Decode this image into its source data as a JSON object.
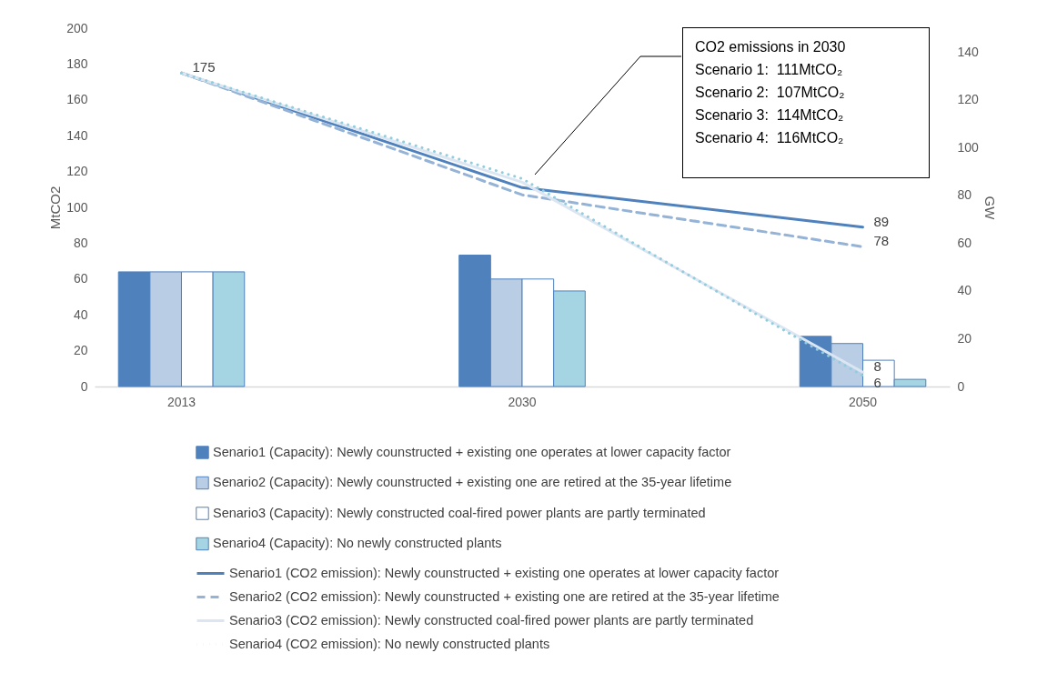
{
  "chart_data": {
    "type": "bar",
    "categories": [
      "2013",
      "2030",
      "2050"
    ],
    "ylabel": "MtCO2",
    "y2label": "GW",
    "ylim": [
      0,
      200
    ],
    "yticks": [
      0,
      20,
      40,
      60,
      80,
      100,
      120,
      140,
      160,
      180,
      200
    ],
    "y2lim": [
      0,
      150
    ],
    "y2ticks": [
      0,
      20,
      40,
      60,
      80,
      100,
      120,
      140
    ],
    "legend": "bottom",
    "annotations": [
      "CO2 emissions in 2030",
      "Scenario 1:  111MtCO₂",
      "Scenario 2:  107MtCO₂",
      "Scenario 3:  114MtCO₂",
      "Scenario 4:  116MtCO₂"
    ],
    "series": [
      {
        "axis": "y2",
        "name": "Senario1 (Capacity): Newly counstructed + existing one operates at lower capacity factor",
        "color": "#4f81bd",
        "values": [
          48,
          55,
          21
        ]
      },
      {
        "axis": "y2",
        "name": "Senario2 (Capacity): Newly counstructed + existing one are retired at the 35-year lifetime",
        "color": "#b9cde5",
        "values": [
          48,
          45,
          18
        ]
      },
      {
        "axis": "y2",
        "name": "Senario3 (Capacity): Newly constructed coal-fired power plants are partly terminated",
        "color": "#ffffff",
        "values": [
          48,
          45,
          11
        ]
      },
      {
        "axis": "y2",
        "name": "Senario4 (Capacity): No newly constructed plants",
        "color": "#a5d5e2",
        "values": [
          48,
          40,
          3
        ]
      },
      {
        "type": "line",
        "axis": "y",
        "line_style": "solid",
        "name": "Senario1 (CO2 emission): Newly counstructed + existing one operates at lower capacity factor",
        "color": "#4f81bd",
        "values": [
          175,
          111,
          89
        ],
        "value_labels": [
          "175",
          null,
          "89"
        ]
      },
      {
        "type": "line",
        "axis": "y",
        "line_style": "dashed",
        "name": "Senario2 (CO2 emission): Newly counstructed + existing one are retired at the 35-year lifetime",
        "color": "#95b3d7",
        "values": [
          175,
          107,
          78
        ],
        "value_labels": [
          null,
          null,
          "78"
        ]
      },
      {
        "type": "line",
        "axis": "y",
        "line_style": "solid",
        "name": "Senario3 (CO2 emission):  Newly constructed coal-fired power plants are partly terminated",
        "color": "#dce6f2",
        "values": [
          175,
          114,
          8
        ],
        "value_labels": [
          null,
          null,
          "8"
        ]
      },
      {
        "type": "line",
        "axis": "y",
        "line_style": "dotted",
        "name": "Senario4 (CO2 emission): No newly constructed plants",
        "color": "#93cddd",
        "values": [
          175,
          116,
          6
        ],
        "value_labels": [
          null,
          null,
          "6"
        ]
      }
    ]
  }
}
